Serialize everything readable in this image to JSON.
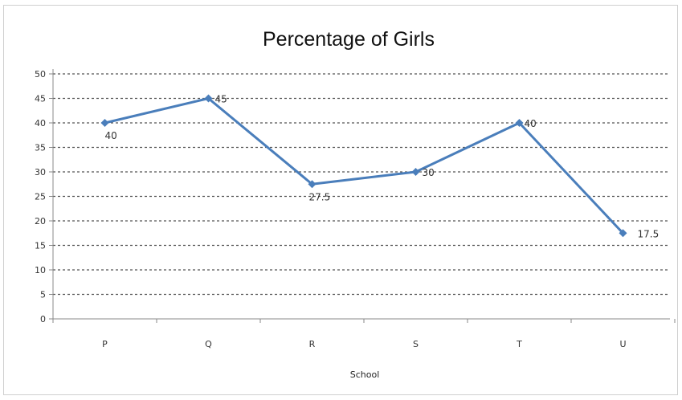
{
  "chart_data": {
    "type": "line",
    "title": "Percentage of Girls",
    "xlabel": "School",
    "ylabel": "",
    "categories": [
      "P",
      "Q",
      "R",
      "S",
      "T",
      "U"
    ],
    "series": [
      {
        "values": [
          40,
          45,
          27.5,
          30,
          40,
          17.5
        ],
        "color": "#4a7ebb"
      }
    ],
    "data_labels": [
      "40",
      "45",
      "27.5",
      "30",
      "40",
      "17.5"
    ],
    "ylim": [
      0,
      50
    ],
    "yticks": [
      0,
      5,
      10,
      15,
      20,
      25,
      30,
      35,
      40,
      45,
      50
    ],
    "grid": true,
    "grid_style": "dashed",
    "legend": "none"
  }
}
